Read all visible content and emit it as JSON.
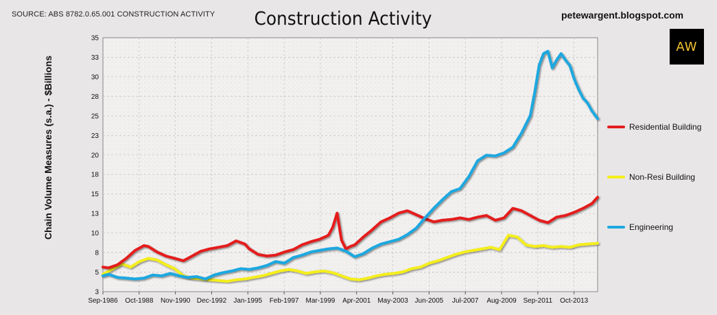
{
  "source": "SOURCE: ABS 8782.0.65.001 CONSTRUCTION ACTIVITY",
  "blog": "petewargent.blogspot.com",
  "logo": "AW",
  "chart_data": {
    "type": "line",
    "title": "Construction Activity",
    "xlabel": "",
    "ylabel": "Chain Volume Measures (s.a.) - $Billions",
    "ylim": [
      3,
      35
    ],
    "xlim": [
      1986.67,
      2014.83
    ],
    "yticks": [
      "3",
      "5",
      "8",
      "10",
      "13",
      "15",
      "18",
      "20",
      "23",
      "25",
      "28",
      "30",
      "33",
      "35"
    ],
    "xticks": [
      "Sep-1986",
      "Oct-1988",
      "Nov-1990",
      "Dec-1992",
      "Jan-1995",
      "Feb-1997",
      "Mar-1999",
      "Apr-2001",
      "May-2003",
      "Jun-2005",
      "Jul-2007",
      "Aug-2009",
      "Sep-2011",
      "Oct-2013"
    ],
    "grid": true,
    "legend": "right",
    "series": [
      {
        "name": "Residential Building",
        "color": "#e41e1e",
        "x": [
          1986.67,
          1987.0,
          1987.5,
          1988.0,
          1988.5,
          1989.0,
          1989.25,
          1989.75,
          1990.25,
          1990.75,
          1991.25,
          1991.75,
          1992.25,
          1992.75,
          1993.25,
          1993.75,
          1994.25,
          1994.75,
          1995.0,
          1995.5,
          1996.0,
          1996.5,
          1997.0,
          1997.5,
          1998.0,
          1998.5,
          1999.0,
          1999.5,
          1999.75,
          2000.0,
          2000.25,
          2000.5,
          2000.75,
          2001.0,
          2001.5,
          2002.0,
          2002.5,
          2003.0,
          2003.5,
          2004.0,
          2004.5,
          2005.0,
          2005.5,
          2006.0,
          2006.5,
          2007.0,
          2007.5,
          2008.0,
          2008.5,
          2009.0,
          2009.5,
          2010.0,
          2010.5,
          2011.0,
          2011.5,
          2012.0,
          2012.5,
          2013.0,
          2013.5,
          2014.0,
          2014.5,
          2014.83
        ],
        "values": [
          6.1,
          6.0,
          6.4,
          7.2,
          8.2,
          8.8,
          8.7,
          8.0,
          7.5,
          7.2,
          6.9,
          7.5,
          8.1,
          8.4,
          8.6,
          8.8,
          9.4,
          9.0,
          8.4,
          7.7,
          7.5,
          7.6,
          8.0,
          8.3,
          8.9,
          9.3,
          9.6,
          10.1,
          11.1,
          12.9,
          9.5,
          8.4,
          8.7,
          8.9,
          9.9,
          10.8,
          11.8,
          12.3,
          12.9,
          13.2,
          12.7,
          12.2,
          11.8,
          12.0,
          12.1,
          12.3,
          12.1,
          12.4,
          12.6,
          12.0,
          12.3,
          13.5,
          13.2,
          12.6,
          12.0,
          11.7,
          12.4,
          12.6,
          13.0,
          13.5,
          14.1,
          14.9
        ]
      },
      {
        "name": "Non-Resi Building",
        "color": "#f4ee1c",
        "x": [
          1986.67,
          1987.25,
          1987.75,
          1988.25,
          1988.75,
          1989.25,
          1989.75,
          1990.25,
          1990.75,
          1991.25,
          1991.75,
          1992.25,
          1992.75,
          1993.25,
          1993.75,
          1994.25,
          1994.75,
          1995.25,
          1995.75,
          1996.25,
          1996.75,
          1997.25,
          1997.75,
          1998.25,
          1998.75,
          1999.25,
          1999.75,
          2000.25,
          2000.75,
          2001.25,
          2001.75,
          2002.25,
          2002.75,
          2003.25,
          2003.75,
          2004.25,
          2004.75,
          2005.25,
          2005.75,
          2006.25,
          2006.75,
          2007.25,
          2007.75,
          2008.25,
          2008.75,
          2009.25,
          2009.75,
          2010.25,
          2010.75,
          2011.25,
          2011.75,
          2012.25,
          2012.75,
          2013.25,
          2013.75,
          2014.25,
          2014.83
        ],
        "values": [
          5.2,
          5.9,
          6.5,
          6.1,
          6.8,
          7.2,
          7.0,
          6.4,
          5.9,
          5.0,
          4.7,
          4.6,
          4.5,
          4.4,
          4.3,
          4.5,
          4.6,
          4.8,
          5.0,
          5.3,
          5.6,
          5.8,
          5.6,
          5.3,
          5.5,
          5.6,
          5.4,
          5.0,
          4.6,
          4.5,
          4.7,
          5.0,
          5.2,
          5.3,
          5.5,
          5.9,
          6.1,
          6.6,
          6.9,
          7.3,
          7.7,
          8.0,
          8.2,
          8.4,
          8.6,
          8.3,
          10.1,
          9.9,
          8.9,
          8.7,
          8.8,
          8.6,
          8.7,
          8.6,
          8.9,
          9.0,
          9.1
        ]
      },
      {
        "name": "Engineering",
        "color": "#1ea8e0",
        "x": [
          1986.67,
          1987.0,
          1987.5,
          1988.0,
          1988.5,
          1989.0,
          1989.5,
          1990.0,
          1990.5,
          1991.0,
          1991.5,
          1992.0,
          1992.5,
          1993.0,
          1993.5,
          1994.0,
          1994.5,
          1995.0,
          1995.5,
          1996.0,
          1996.5,
          1997.0,
          1997.5,
          1998.0,
          1998.5,
          1999.0,
          1999.5,
          2000.0,
          2000.5,
          2001.0,
          2001.5,
          2002.0,
          2002.5,
          2003.0,
          2003.5,
          2004.0,
          2004.5,
          2005.0,
          2005.5,
          2006.0,
          2006.5,
          2007.0,
          2007.5,
          2008.0,
          2008.5,
          2009.0,
          2009.5,
          2010.0,
          2010.5,
          2011.0,
          2011.25,
          2011.5,
          2011.75,
          2012.0,
          2012.25,
          2012.5,
          2012.75,
          2013.0,
          2013.25,
          2013.5,
          2013.75,
          2014.0,
          2014.25,
          2014.5,
          2014.83
        ],
        "values": [
          5.0,
          5.2,
          4.8,
          4.7,
          4.6,
          4.7,
          5.1,
          5.0,
          5.3,
          5.0,
          4.8,
          4.9,
          4.6,
          5.1,
          5.4,
          5.6,
          5.9,
          5.8,
          6.0,
          6.3,
          6.8,
          6.6,
          7.3,
          7.6,
          8.0,
          8.2,
          8.4,
          8.5,
          8.1,
          7.4,
          7.8,
          8.5,
          9.0,
          9.3,
          9.6,
          10.2,
          11.0,
          12.3,
          13.5,
          14.6,
          15.6,
          16.0,
          17.5,
          19.5,
          20.2,
          20.1,
          20.5,
          21.2,
          23.0,
          25.2,
          28.1,
          31.5,
          33.0,
          33.3,
          31.2,
          32.2,
          33.0,
          32.2,
          31.5,
          29.8,
          28.5,
          27.4,
          26.8,
          25.8,
          24.8
        ]
      }
    ]
  }
}
